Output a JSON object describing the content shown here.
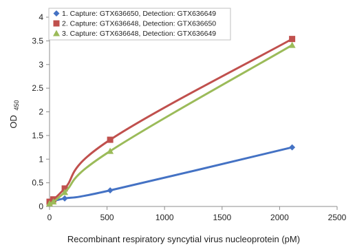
{
  "chart_data": {
    "type": "line",
    "xlabel": "Recombinant respiratory syncytial virus nucleoprotein (pM)",
    "ylabel_main": "OD",
    "ylabel_sub": "450",
    "xlim": [
      0,
      2500
    ],
    "ylim": [
      0,
      4
    ],
    "xticks": [
      0,
      500,
      1000,
      1500,
      2000,
      2500
    ],
    "yticks": [
      0,
      0.5,
      1,
      1.5,
      2,
      2.5,
      3,
      3.5,
      4
    ],
    "ytick_labels": [
      "0",
      "0.5",
      "1",
      "1.5",
      "2",
      "2.5",
      "3",
      "3.5",
      "4"
    ],
    "grid": false,
    "legend_position": "top-left",
    "series": [
      {
        "name": "1. Capture: GTX636650, Detection: GTX636649",
        "color": "#4472C4",
        "marker": "diamond",
        "x": [
          0,
          33,
          132,
          527,
          2109
        ],
        "y": [
          0.07,
          0.11,
          0.17,
          0.34,
          1.25
        ]
      },
      {
        "name": "2. Capture: GTX636648, Detection: GTX636650",
        "color": "#C0504D",
        "marker": "square",
        "x": [
          0,
          33,
          132,
          527,
          2109
        ],
        "y": [
          0.1,
          0.15,
          0.38,
          1.41,
          3.54
        ]
      },
      {
        "name": "3. Capture: GTX636648, Detection: GTX636649",
        "color": "#9BBB59",
        "marker": "triangle",
        "x": [
          0,
          33,
          132,
          527,
          2109
        ],
        "y": [
          0.06,
          0.1,
          0.3,
          1.17,
          3.41
        ]
      }
    ]
  }
}
